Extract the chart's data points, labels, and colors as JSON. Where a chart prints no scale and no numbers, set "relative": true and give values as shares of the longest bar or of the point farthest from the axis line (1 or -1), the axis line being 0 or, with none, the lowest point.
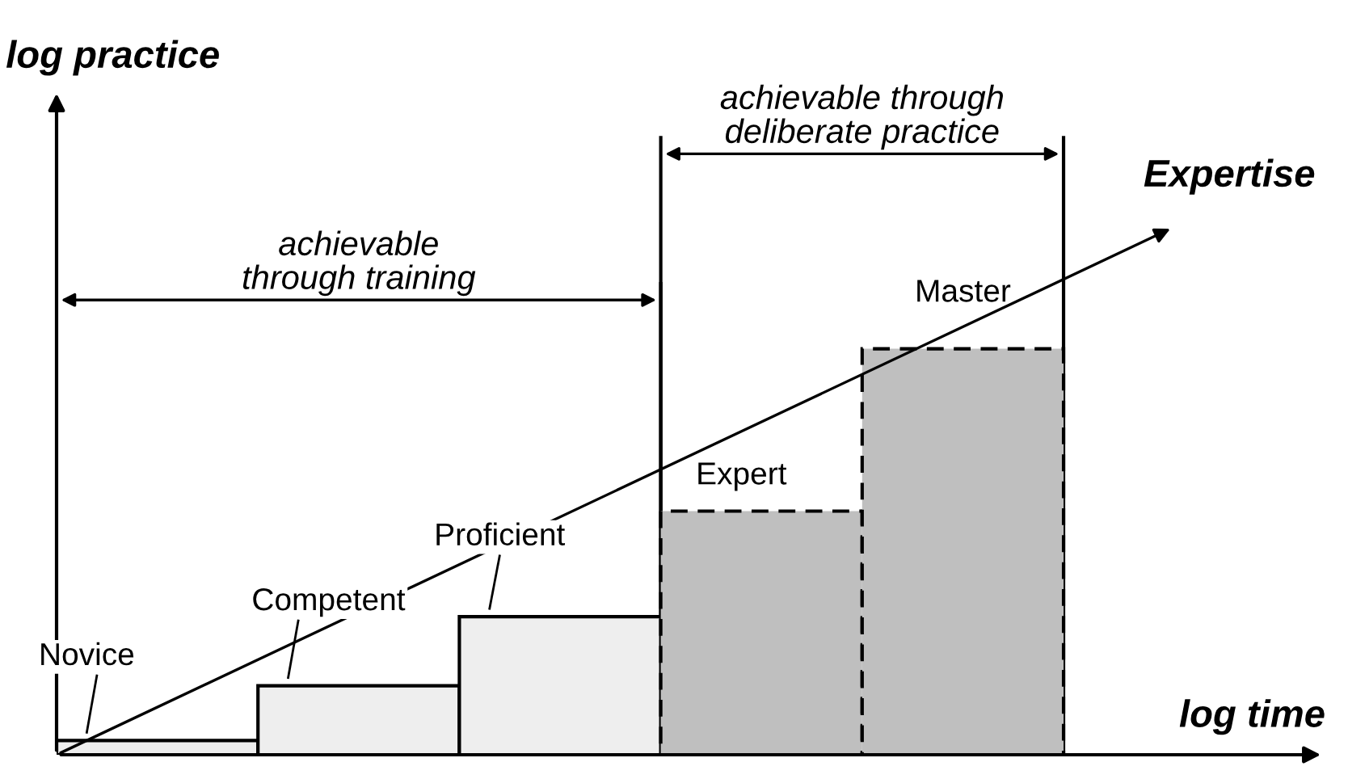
{
  "chart_data": {
    "type": "bar",
    "relative": true,
    "xlabel": "log time",
    "categories": [
      null,
      null,
      null,
      null,
      null
    ],
    "series": [
      {
        "colors": [
          "#eeeeee",
          "#eeeeee",
          "#eeeeee",
          "#bfbfbf",
          "#bfbfbf"
        ],
        "line_style": [
          "solid",
          "solid",
          "solid",
          "dashed",
          "dashed"
        ],
        "values": [
          0.035,
          0.17,
          0.34,
          0.6,
          1
        ]
      }
    ],
    "annotations": [
      "Novice",
      "Competent",
      "Proficient",
      "Expert",
      "Master",
      "Expertise",
      "achievable\nthrough training",
      "achievable through\ndeliberate practice",
      "log practice"
    ]
  }
}
